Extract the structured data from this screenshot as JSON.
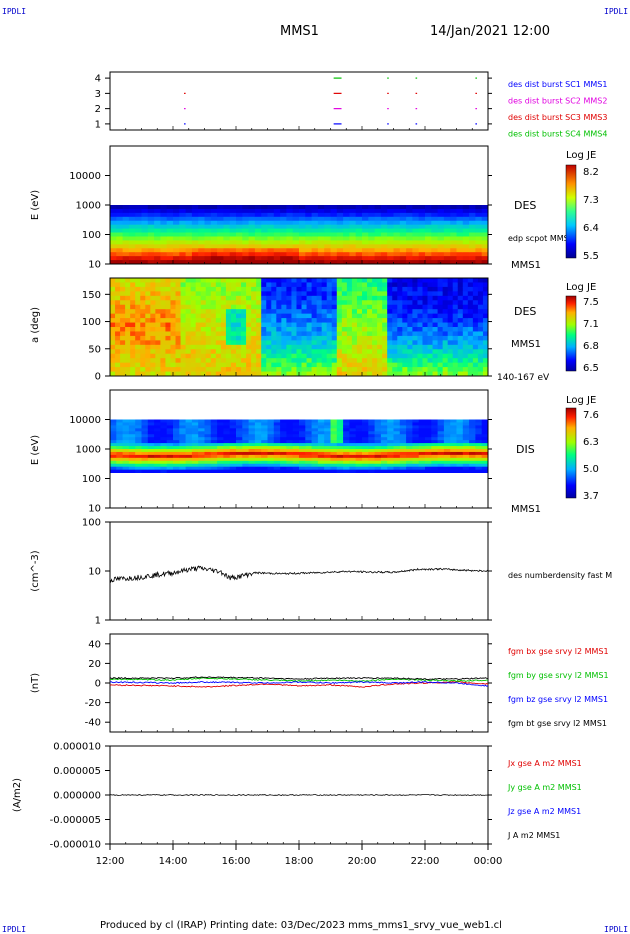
{
  "header": {
    "logo_left": "IPDLI",
    "logo_right": "IPDLI",
    "logo_bottom_left": "IPDLI",
    "logo_bottom_right": "IPDLI",
    "spacecraft": "MMS1",
    "datetime": "14/Jan/2021 12:00"
  },
  "footer": {
    "text": "Produced by cl (IRAP)   Printing date: 03/Dec/2023   mms_mms1_srvy_vue_web1.cl"
  },
  "colors": {
    "blue": "#0000ff",
    "magenta": "#e000e0",
    "red": "#e00000",
    "green": "#00c000",
    "black": "#000000"
  },
  "chart_data": [
    {
      "id": "burst",
      "type": "scatter",
      "x_ticks": [
        "12:00",
        "14:00",
        "16:00",
        "18:00",
        "20:00",
        "22:00",
        "00:00"
      ],
      "y_ticks": [
        "1",
        "2",
        "3",
        "4"
      ],
      "ylim": [
        0.6,
        4.4
      ],
      "legend": [
        {
          "label": "des dist burst SC1 MMS1",
          "color": "#0000ff"
        },
        {
          "label": "des dist burst SC2 MMS2",
          "color": "#e000e0"
        },
        {
          "label": "des dist burst SC3 MMS3",
          "color": "#e00000"
        },
        {
          "label": "des dist burst SC4 MMS4",
          "color": "#00c000"
        }
      ],
      "marks": [
        {
          "hour": 2.35,
          "level": 3,
          "len": 0.05
        },
        {
          "hour": 2.35,
          "level": 2,
          "len": 0.05
        },
        {
          "hour": 2.35,
          "level": 1,
          "len": 0.05
        },
        {
          "hour": 7.1,
          "level": 4,
          "len": 0.25
        },
        {
          "hour": 7.1,
          "level": 3,
          "len": 0.25
        },
        {
          "hour": 7.1,
          "level": 2,
          "len": 0.25
        },
        {
          "hour": 7.1,
          "level": 1,
          "len": 0.25
        },
        {
          "hour": 8.8,
          "level": 4,
          "len": 0.05
        },
        {
          "hour": 8.8,
          "level": 3,
          "len": 0.05
        },
        {
          "hour": 8.8,
          "level": 2,
          "len": 0.05
        },
        {
          "hour": 8.8,
          "level": 1,
          "len": 0.05
        },
        {
          "hour": 9.7,
          "level": 4,
          "len": 0.05
        },
        {
          "hour": 9.7,
          "level": 3,
          "len": 0.05
        },
        {
          "hour": 9.7,
          "level": 2,
          "len": 0.05
        },
        {
          "hour": 9.7,
          "level": 1,
          "len": 0.05
        },
        {
          "hour": 11.6,
          "level": 4,
          "len": 0.05
        },
        {
          "hour": 11.6,
          "level": 3,
          "len": 0.05
        },
        {
          "hour": 11.6,
          "level": 2,
          "len": 0.05
        },
        {
          "hour": 11.6,
          "level": 1,
          "len": 0.05
        }
      ]
    },
    {
      "id": "des_energy",
      "type": "heatmap",
      "ylabel": "E (eV)",
      "y_ticks": [
        "10",
        "100",
        "1000",
        "10000"
      ],
      "right_label": "DES",
      "overlay_label": "edp scpot MMS1",
      "bottom_label": "MMS1",
      "colorbar": {
        "title": "Log JE",
        "ticks": [
          "8.2",
          "7.3",
          "6.4",
          "5.5"
        ]
      }
    },
    {
      "id": "des_pitch",
      "type": "heatmap",
      "ylabel": "a (deg)",
      "y_ticks": [
        "0",
        "50",
        "100",
        "150"
      ],
      "right_label": "DES",
      "right_label2": "MMS1",
      "bottom_label": "140-167 eV",
      "colorbar": {
        "title": "Log JE",
        "ticks": [
          "7.5",
          "7.1",
          "6.8",
          "6.5"
        ]
      }
    },
    {
      "id": "dis_energy",
      "type": "heatmap",
      "ylabel": "E (eV)",
      "y_ticks": [
        "10",
        "100",
        "1000",
        "10000"
      ],
      "right_label": "DIS",
      "bottom_label": "MMS1",
      "colorbar": {
        "title": "Log JE",
        "ticks": [
          "7.6",
          "6.3",
          "5.0",
          "3.7"
        ]
      }
    },
    {
      "id": "density",
      "type": "line",
      "ylabel": "(cm^-3)",
      "y_ticks": [
        "1",
        "10",
        "100"
      ],
      "label": "des numberdensity fast M",
      "anchors": [
        [
          0,
          6.6
        ],
        [
          1,
          7.6
        ],
        [
          2,
          9.2
        ],
        [
          2.4,
          10.5
        ],
        [
          2.8,
          11.5
        ],
        [
          3.5,
          9.8
        ],
        [
          3.8,
          7.2
        ],
        [
          4.2,
          8.0
        ],
        [
          4.6,
          9.2
        ],
        [
          5.5,
          8.8
        ],
        [
          6.5,
          9.2
        ],
        [
          7.5,
          9.8
        ],
        [
          8.3,
          9.5
        ],
        [
          9.0,
          9.4
        ],
        [
          9.8,
          10.8
        ],
        [
          10.5,
          11.0
        ],
        [
          11.2,
          10.4
        ],
        [
          12,
          10.0
        ]
      ]
    },
    {
      "id": "fgm",
      "type": "line",
      "ylabel": "(nT)",
      "y_ticks": [
        "-40",
        "-20",
        "0",
        "20",
        "40"
      ],
      "ylim": [
        -50,
        50
      ],
      "series": [
        {
          "name": "fgm bx gse srvy l2 MMS1",
          "color": "#e00000",
          "anchors": [
            [
              0,
              -2
            ],
            [
              2,
              -3
            ],
            [
              3,
              -4
            ],
            [
              5,
              -1
            ],
            [
              6,
              -3
            ],
            [
              7,
              -2
            ],
            [
              8,
              -4
            ],
            [
              9,
              -1
            ],
            [
              10,
              0
            ],
            [
              11,
              1
            ],
            [
              12,
              -1
            ]
          ]
        },
        {
          "name": "fgm by gse srvy l2 MMS1",
          "color": "#00c000",
          "anchors": [
            [
              0,
              4
            ],
            [
              2,
              3
            ],
            [
              3,
              5
            ],
            [
              5,
              3
            ],
            [
              6,
              2
            ],
            [
              7,
              3
            ],
            [
              8,
              2
            ],
            [
              9,
              4
            ],
            [
              10,
              3
            ],
            [
              11,
              2
            ],
            [
              12,
              3
            ]
          ]
        },
        {
          "name": "fgm bz gse srvy l2 MMS1",
          "color": "#0000ff",
          "anchors": [
            [
              0,
              1
            ],
            [
              2,
              0
            ],
            [
              3,
              1
            ],
            [
              5,
              0
            ],
            [
              6,
              1
            ],
            [
              7,
              0
            ],
            [
              8,
              1
            ],
            [
              9,
              0
            ],
            [
              10,
              1
            ],
            [
              11,
              0
            ],
            [
              12,
              -3
            ]
          ]
        },
        {
          "name": "fgm bt gse srvy l2 MMS1",
          "color": "#000000",
          "anchors": [
            [
              0,
              5
            ],
            [
              2,
              5
            ],
            [
              3,
              6
            ],
            [
              5,
              5
            ],
            [
              6,
              4
            ],
            [
              7,
              5
            ],
            [
              8,
              5
            ],
            [
              9,
              5
            ],
            [
              10,
              4
            ],
            [
              11,
              4
            ],
            [
              12,
              5
            ]
          ]
        }
      ]
    },
    {
      "id": "current",
      "type": "line",
      "ylabel": "(A/m2)",
      "y_ticks": [
        "-0.000010",
        "-0.000005",
        "0.000000",
        "0.000005",
        "0.000010"
      ],
      "ylim": [
        -1e-05,
        1e-05
      ],
      "series": [
        {
          "name": "Jx gse A m2 MMS1",
          "color": "#e00000"
        },
        {
          "name": "Jy gse A m2 MMS1",
          "color": "#00c000"
        },
        {
          "name": "Jz gse A m2 MMS1",
          "color": "#0000ff"
        },
        {
          "name": "J A m2 MMS1",
          "color": "#000000"
        }
      ]
    }
  ],
  "time_axis": {
    "ticks": [
      "12:00",
      "14:00",
      "16:00",
      "18:00",
      "20:00",
      "22:00",
      "00:00"
    ]
  }
}
